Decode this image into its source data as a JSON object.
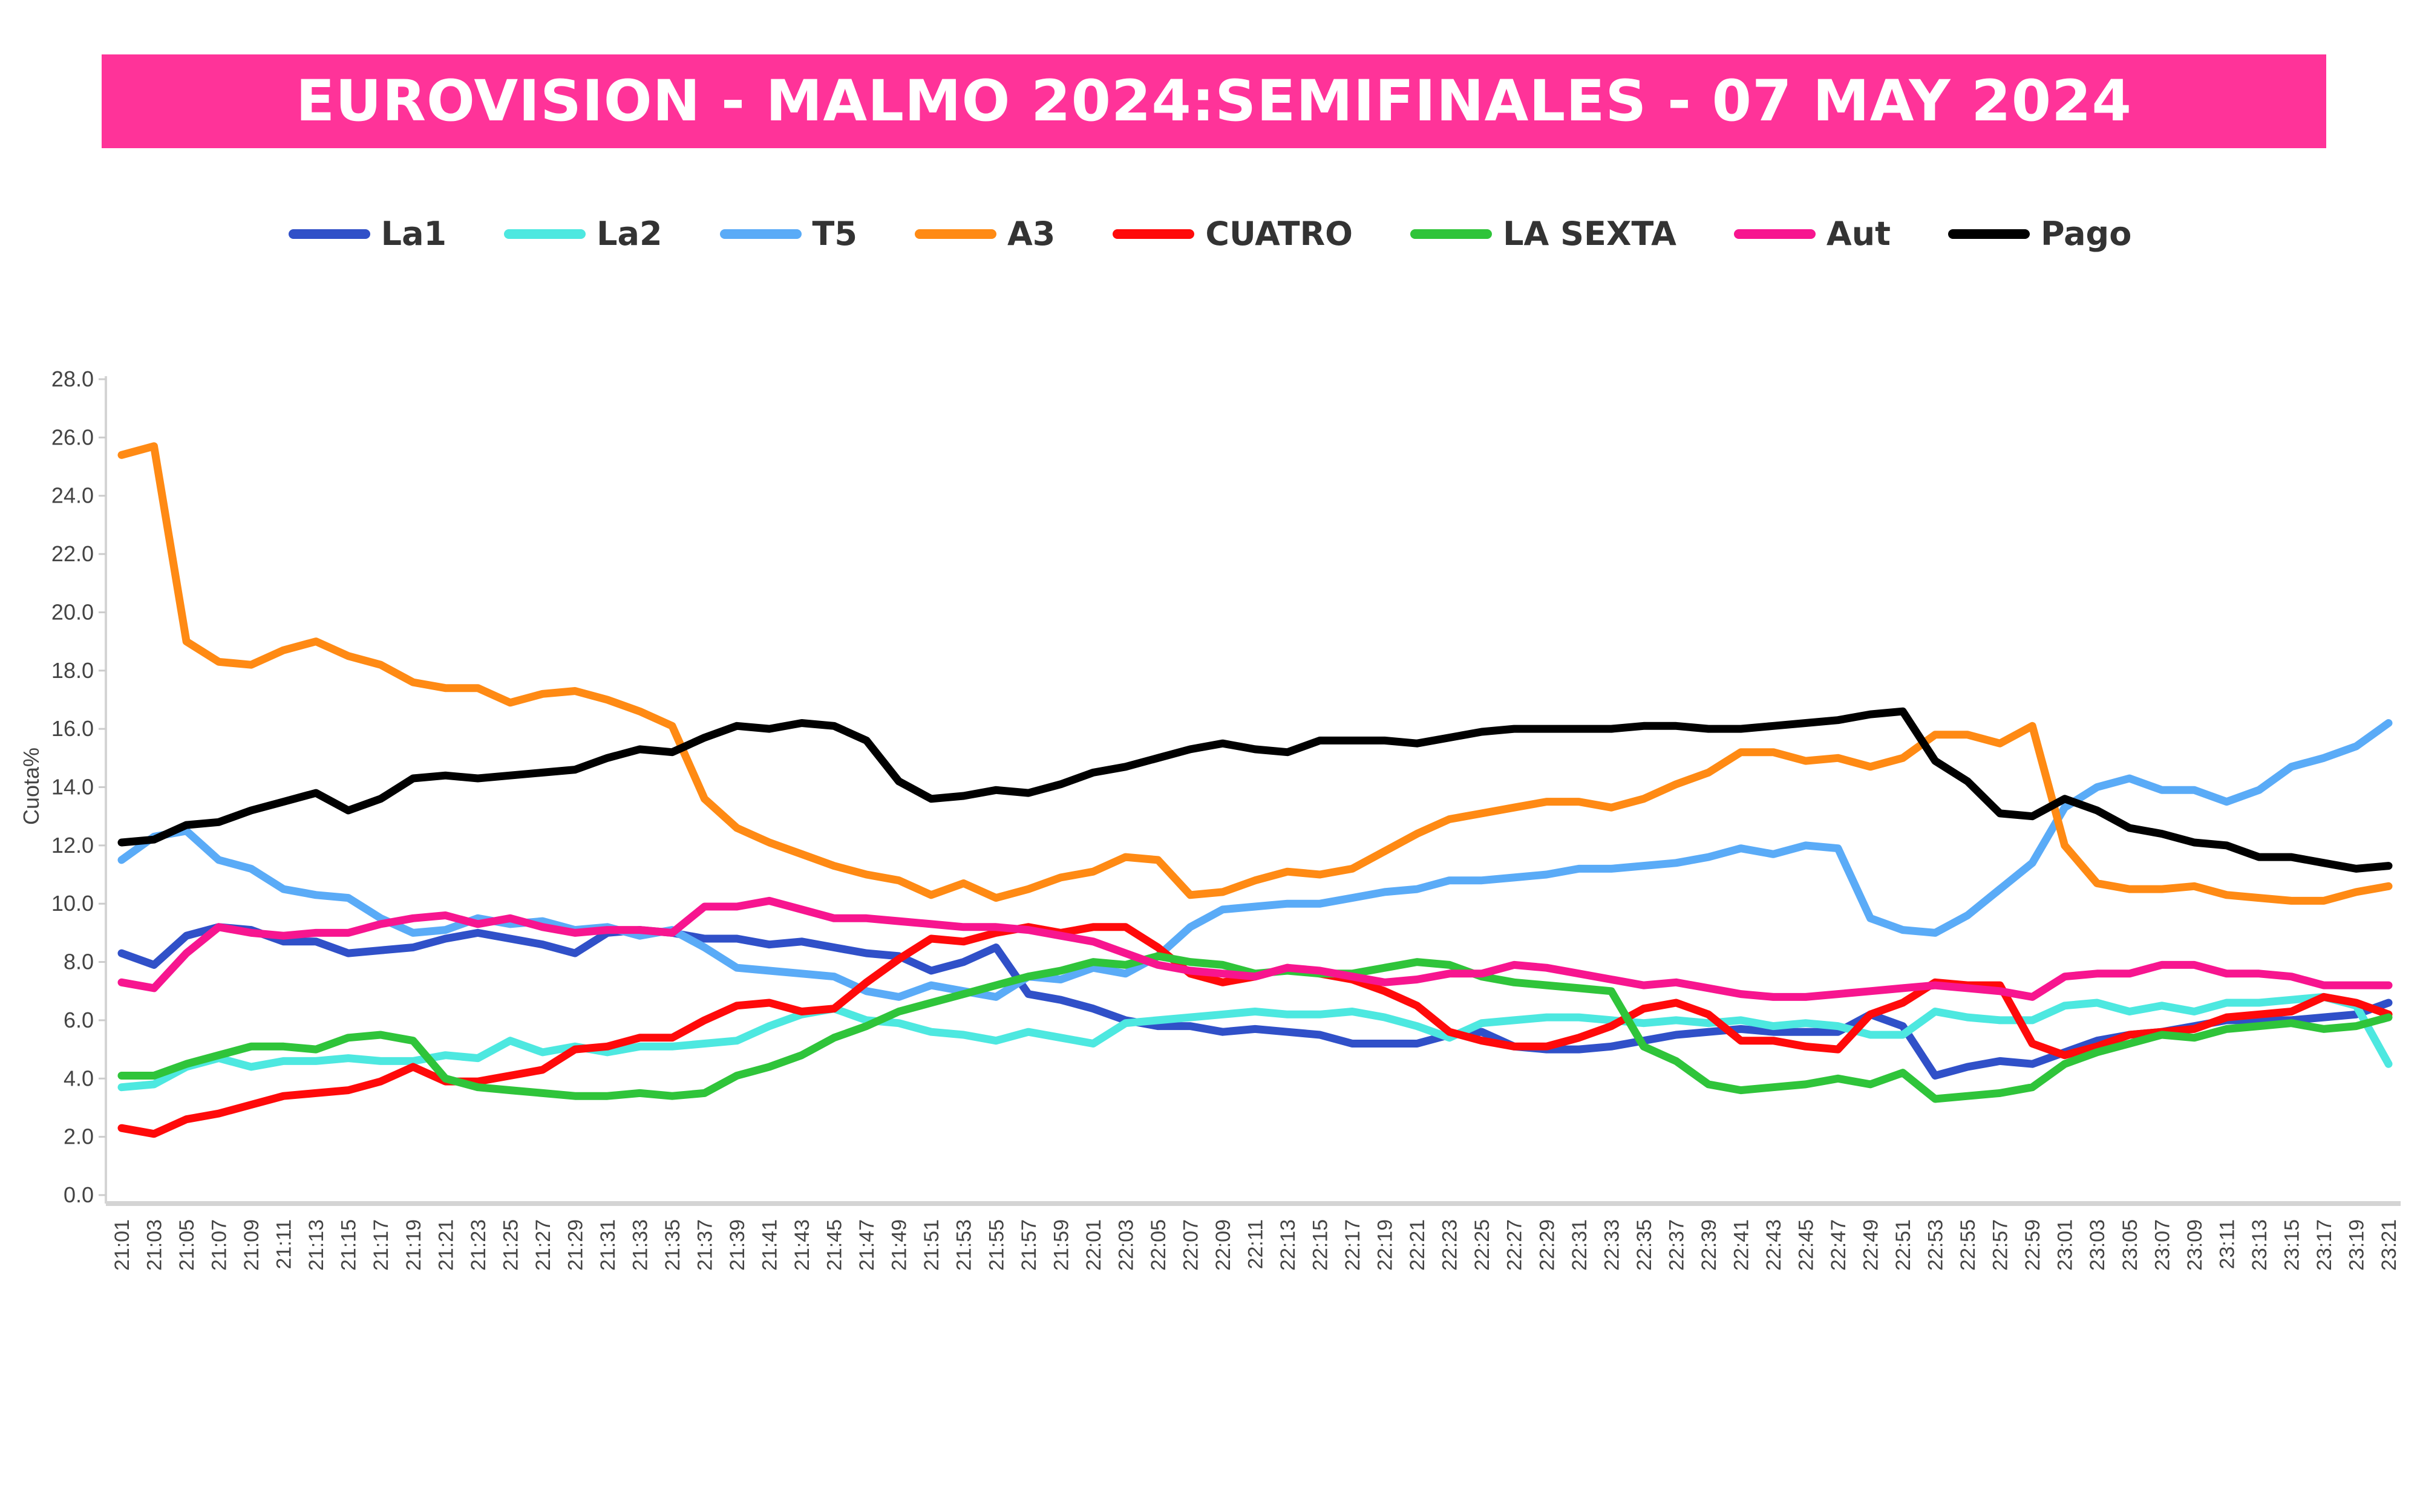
{
  "chart_data": {
    "type": "line",
    "title": "EUROVISION - MALMO 2024:SEMIFINALES - 07 MAY 2024",
    "xlabel": "",
    "ylabel": "Cuota%",
    "ylim": [
      0,
      28
    ],
    "yticks": [
      "0.0",
      "2.0",
      "4.0",
      "6.0",
      "8.0",
      "10.0",
      "12.0",
      "14.0",
      "16.0",
      "18.0",
      "20.0",
      "22.0",
      "24.0",
      "26.0",
      "28.0"
    ],
    "legend_position": "top-center",
    "grid": false,
    "x": [
      "21:01",
      "21:03",
      "21:05",
      "21:07",
      "21:09",
      "21:11",
      "21:13",
      "21:15",
      "21:17",
      "21:19",
      "21:21",
      "21:23",
      "21:25",
      "21:27",
      "21:29",
      "21:31",
      "21:33",
      "21:35",
      "21:37",
      "21:39",
      "21:41",
      "21:43",
      "21:45",
      "21:47",
      "21:49",
      "21:51",
      "21:53",
      "21:55",
      "21:57",
      "21:59",
      "22:01",
      "22:03",
      "22:05",
      "22:07",
      "22:09",
      "22:11",
      "22:13",
      "22:15",
      "22:17",
      "22:19",
      "22:21",
      "22:23",
      "22:25",
      "22:27",
      "22:29",
      "22:31",
      "22:33",
      "22:35",
      "22:37",
      "22:39",
      "22:41",
      "22:43",
      "22:45",
      "22:47",
      "22:49",
      "22:51",
      "22:53",
      "22:55",
      "22:57",
      "22:59",
      "23:01",
      "23:03",
      "23:05",
      "23:07",
      "23:09",
      "23:11",
      "23:13",
      "23:15",
      "23:17",
      "23:19",
      "23:21"
    ],
    "series": [
      {
        "name": "La1",
        "color": "#3050c8",
        "values": [
          8.3,
          7.9,
          8.9,
          9.2,
          9.1,
          8.7,
          8.7,
          8.3,
          8.4,
          8.5,
          8.8,
          9.0,
          8.8,
          8.6,
          8.3,
          9.0,
          9.1,
          9.0,
          8.8,
          8.8,
          8.6,
          8.7,
          8.5,
          8.3,
          8.2,
          7.7,
          8.0,
          8.5,
          6.9,
          6.7,
          6.4,
          6.0,
          5.8,
          5.8,
          5.6,
          5.7,
          5.6,
          5.5,
          5.2,
          5.2,
          5.2,
          5.5,
          5.6,
          5.1,
          5.0,
          5.0,
          5.1,
          5.3,
          5.5,
          5.6,
          5.7,
          5.6,
          5.6,
          5.6,
          6.2,
          5.8,
          4.1,
          4.4,
          4.6,
          4.5,
          4.9,
          5.3,
          5.5,
          5.6,
          5.8,
          6.0,
          6.0,
          6.0,
          6.1,
          6.2,
          6.6
        ]
      },
      {
        "name": "La2",
        "color": "#4de8e0",
        "values": [
          3.7,
          3.8,
          4.4,
          4.7,
          4.4,
          4.6,
          4.6,
          4.7,
          4.6,
          4.6,
          4.8,
          4.7,
          5.3,
          4.9,
          5.1,
          4.9,
          5.1,
          5.1,
          5.2,
          5.3,
          5.8,
          6.2,
          6.4,
          6.0,
          5.9,
          5.6,
          5.5,
          5.3,
          5.6,
          5.4,
          5.2,
          5.9,
          6.0,
          6.1,
          6.2,
          6.3,
          6.2,
          6.2,
          6.3,
          6.1,
          5.8,
          5.4,
          5.9,
          6.0,
          6.1,
          6.1,
          6.0,
          5.9,
          6.0,
          5.9,
          6.0,
          5.8,
          5.9,
          5.8,
          5.5,
          5.5,
          6.3,
          6.1,
          6.0,
          6.0,
          6.5,
          6.6,
          6.3,
          6.5,
          6.3,
          6.6,
          6.6,
          6.7,
          6.8,
          6.5,
          4.5
        ]
      },
      {
        "name": "T5",
        "color": "#5aabf7",
        "values": [
          11.5,
          12.3,
          12.5,
          11.5,
          11.2,
          10.5,
          10.3,
          10.2,
          9.5,
          9.0,
          9.1,
          9.5,
          9.3,
          9.4,
          9.1,
          9.2,
          8.9,
          9.1,
          8.5,
          7.8,
          7.7,
          7.6,
          7.5,
          7.0,
          6.8,
          7.2,
          7.0,
          6.8,
          7.5,
          7.4,
          7.8,
          7.6,
          8.2,
          9.2,
          9.8,
          9.9,
          10.0,
          10.0,
          10.2,
          10.4,
          10.5,
          10.8,
          10.8,
          10.9,
          11.0,
          11.2,
          11.2,
          11.3,
          11.4,
          11.6,
          11.9,
          11.7,
          12.0,
          11.9,
          9.5,
          9.1,
          9.0,
          9.6,
          10.5,
          11.4,
          13.3,
          14.0,
          14.3,
          13.9,
          13.9,
          13.5,
          13.9,
          14.7,
          15.0,
          15.4,
          16.2
        ]
      },
      {
        "name": "A3",
        "color": "#ff8a14",
        "values": [
          25.4,
          25.7,
          19.0,
          18.3,
          18.2,
          18.7,
          19.0,
          18.5,
          18.2,
          17.6,
          17.4,
          17.4,
          16.9,
          17.2,
          17.3,
          17.0,
          16.6,
          16.1,
          13.6,
          12.6,
          12.1,
          11.7,
          11.3,
          11.0,
          10.8,
          10.3,
          10.7,
          10.2,
          10.5,
          10.9,
          11.1,
          11.6,
          11.5,
          10.3,
          10.4,
          10.8,
          11.1,
          11.0,
          11.2,
          11.8,
          12.4,
          12.9,
          13.1,
          13.3,
          13.5,
          13.5,
          13.3,
          13.6,
          14.1,
          14.5,
          15.2,
          15.2,
          14.9,
          15.0,
          14.7,
          15.0,
          15.8,
          15.8,
          15.5,
          16.1,
          12.0,
          10.7,
          10.5,
          10.5,
          10.6,
          10.3,
          10.2,
          10.1,
          10.1,
          10.4,
          10.6
        ]
      },
      {
        "name": "CUATRO",
        "color": "#ff0a0a",
        "values": [
          2.3,
          2.1,
          2.6,
          2.8,
          3.1,
          3.4,
          3.5,
          3.6,
          3.9,
          4.4,
          3.9,
          3.9,
          4.1,
          4.3,
          5.0,
          5.1,
          5.4,
          5.4,
          6.0,
          6.5,
          6.6,
          6.3,
          6.4,
          7.3,
          8.1,
          8.8,
          8.7,
          9.0,
          9.2,
          9.0,
          9.2,
          9.2,
          8.5,
          7.6,
          7.3,
          7.5,
          7.8,
          7.6,
          7.4,
          7.0,
          6.5,
          5.6,
          5.3,
          5.1,
          5.1,
          5.4,
          5.8,
          6.4,
          6.6,
          6.2,
          5.3,
          5.3,
          5.1,
          5.0,
          6.2,
          6.6,
          7.3,
          7.2,
          7.2,
          5.2,
          4.8,
          5.1,
          5.5,
          5.6,
          5.7,
          6.1,
          6.2,
          6.3,
          6.8,
          6.6,
          6.2
        ]
      },
      {
        "name": "LA SEXTA",
        "color": "#2fc43a",
        "values": [
          4.1,
          4.1,
          4.5,
          4.8,
          5.1,
          5.1,
          5.0,
          5.4,
          5.5,
          5.3,
          4.0,
          3.7,
          3.6,
          3.5,
          3.4,
          3.4,
          3.5,
          3.4,
          3.5,
          4.1,
          4.4,
          4.8,
          5.4,
          5.8,
          6.3,
          6.6,
          6.9,
          7.2,
          7.5,
          7.7,
          8.0,
          7.9,
          8.2,
          8.0,
          7.9,
          7.6,
          7.7,
          7.6,
          7.6,
          7.8,
          8.0,
          7.9,
          7.5,
          7.3,
          7.2,
          7.1,
          7.0,
          5.1,
          4.6,
          3.8,
          3.6,
          3.7,
          3.8,
          4.0,
          3.8,
          4.2,
          3.3,
          3.4,
          3.5,
          3.7,
          4.5,
          4.9,
          5.2,
          5.5,
          5.4,
          5.7,
          5.8,
          5.9,
          5.7,
          5.8,
          6.1
        ]
      },
      {
        "name": "Aut",
        "color": "#f7158f",
        "values": [
          7.3,
          7.1,
          8.3,
          9.2,
          9.0,
          8.9,
          9.0,
          9.0,
          9.3,
          9.5,
          9.6,
          9.3,
          9.5,
          9.2,
          9.0,
          9.1,
          9.1,
          9.0,
          9.9,
          9.9,
          10.1,
          9.8,
          9.5,
          9.5,
          9.4,
          9.3,
          9.2,
          9.2,
          9.1,
          8.9,
          8.7,
          8.3,
          7.9,
          7.7,
          7.6,
          7.5,
          7.8,
          7.7,
          7.5,
          7.3,
          7.4,
          7.6,
          7.6,
          7.9,
          7.8,
          7.6,
          7.4,
          7.2,
          7.3,
          7.1,
          6.9,
          6.8,
          6.8,
          6.9,
          7.0,
          7.1,
          7.2,
          7.1,
          7.0,
          6.8,
          7.5,
          7.6,
          7.6,
          7.9,
          7.9,
          7.6,
          7.6,
          7.5,
          7.2,
          7.2,
          7.2
        ]
      },
      {
        "name": "Pago",
        "color": "#000000",
        "values": [
          12.1,
          12.2,
          12.7,
          12.8,
          13.2,
          13.5,
          13.8,
          13.2,
          13.6,
          14.3,
          14.4,
          14.3,
          14.4,
          14.5,
          14.6,
          15.0,
          15.3,
          15.2,
          15.7,
          16.1,
          16.0,
          16.2,
          16.1,
          15.6,
          14.2,
          13.6,
          13.7,
          13.9,
          13.8,
          14.1,
          14.5,
          14.7,
          15.0,
          15.3,
          15.5,
          15.3,
          15.2,
          15.6,
          15.6,
          15.6,
          15.5,
          15.7,
          15.9,
          16.0,
          16.0,
          16.0,
          16.0,
          16.1,
          16.1,
          16.0,
          16.0,
          16.1,
          16.2,
          16.3,
          16.5,
          16.6,
          14.9,
          14.2,
          13.1,
          13.0,
          13.6,
          13.2,
          12.6,
          12.4,
          12.1,
          12.0,
          11.6,
          11.6,
          11.4,
          11.2,
          11.3
        ]
      }
    ]
  }
}
